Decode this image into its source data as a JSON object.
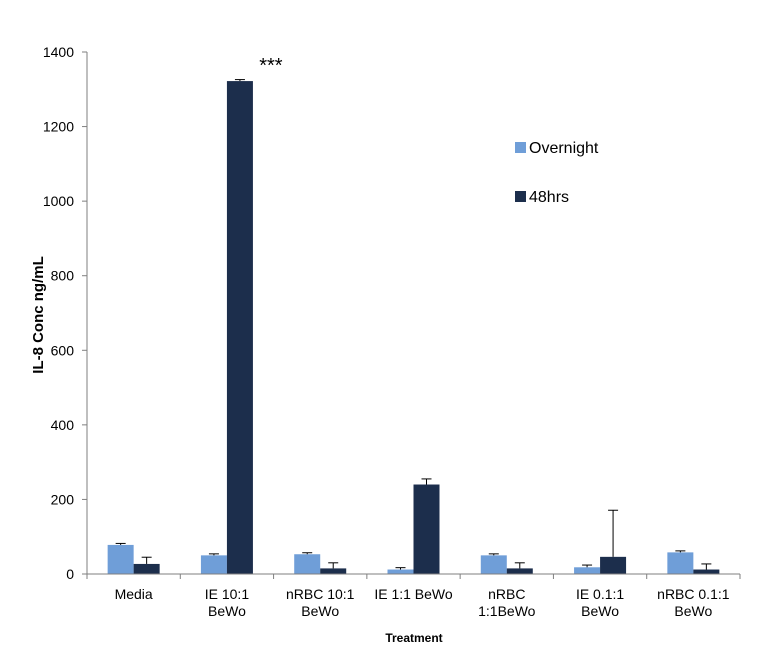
{
  "chart_data": {
    "type": "bar",
    "categories": [
      [
        "Media"
      ],
      [
        "IE 10:1",
        "BeWo"
      ],
      [
        "nRBC 10:1",
        "BeWo"
      ],
      [
        "IE 1:1 BeWo"
      ],
      [
        "nRBC",
        "1:1BeWo"
      ],
      [
        "IE 0.1:1",
        "BeWo"
      ],
      [
        "nRBC 0.1:1",
        "BeWo"
      ]
    ],
    "series": [
      {
        "name": "Overnight",
        "color": "#6f9ed8",
        "values": [
          78,
          50,
          53,
          12,
          50,
          18,
          58
        ],
        "errors": [
          4,
          4,
          4,
          5,
          4,
          6,
          4
        ]
      },
      {
        "name": "48hrs",
        "color": "#1c2e4c",
        "values": [
          27,
          1322,
          15,
          240,
          15,
          46,
          12
        ],
        "errors": [
          18,
          4,
          15,
          15,
          15,
          125,
          15
        ]
      }
    ],
    "ylabel": "IL-8 Conc ng/mL",
    "xlabel": "Treatment",
    "ylim": [
      0,
      1400
    ],
    "yticks": [
      0,
      200,
      400,
      600,
      800,
      1000,
      1200,
      1400
    ],
    "grid": false,
    "legend_position": "top-right",
    "annotations": [
      {
        "text": "***",
        "category_index": 1
      }
    ]
  }
}
